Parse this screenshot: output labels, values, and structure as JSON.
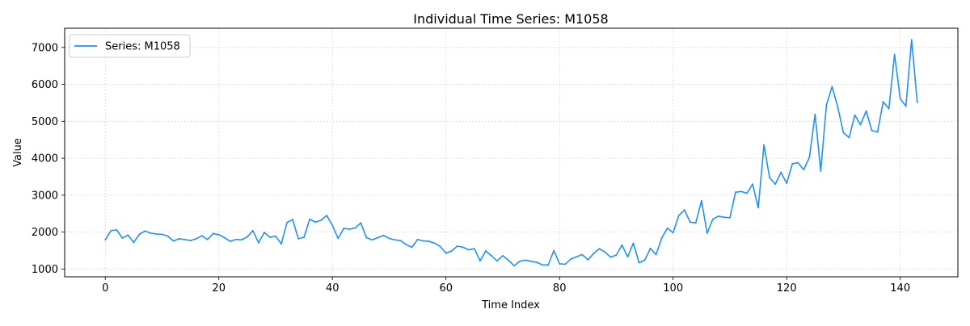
{
  "chart_data": {
    "type": "line",
    "title": "Individual Time Series: M1058",
    "xlabel": "Time Index",
    "ylabel": "Value",
    "xlim": [
      -7.15,
      150.15
    ],
    "ylim": [
      790,
      7520
    ],
    "xticks": [
      0,
      20,
      40,
      60,
      80,
      100,
      120,
      140
    ],
    "yticks": [
      1000,
      2000,
      3000,
      4000,
      5000,
      6000,
      7000
    ],
    "grid": true,
    "legend_position": "upper-left",
    "series": [
      {
        "name": "Series: M1058",
        "color": "#1e90ff",
        "x": [
          0,
          1,
          2,
          3,
          4,
          5,
          6,
          7,
          8,
          9,
          10,
          11,
          12,
          13,
          14,
          15,
          16,
          17,
          18,
          19,
          20,
          21,
          22,
          23,
          24,
          25,
          26,
          27,
          28,
          29,
          30,
          31,
          32,
          33,
          34,
          35,
          36,
          37,
          38,
          39,
          40,
          41,
          42,
          43,
          44,
          45,
          46,
          47,
          48,
          49,
          50,
          51,
          52,
          53,
          54,
          55,
          56,
          57,
          58,
          59,
          60,
          61,
          62,
          63,
          64,
          65,
          66,
          67,
          68,
          69,
          70,
          71,
          72,
          73,
          74,
          75,
          76,
          77,
          78,
          79,
          80,
          81,
          82,
          83,
          84,
          85,
          86,
          87,
          88,
          89,
          90,
          91,
          92,
          93,
          94,
          95,
          96,
          97,
          98,
          99,
          100,
          101,
          102,
          103,
          104,
          105,
          106,
          107,
          108,
          109,
          110,
          111,
          112,
          113,
          114,
          115,
          116,
          117,
          118,
          119,
          120,
          121,
          122,
          123,
          124,
          125,
          126,
          127,
          128,
          129,
          130,
          131,
          132,
          133,
          134,
          135,
          136,
          137,
          138,
          139,
          140,
          141,
          142,
          143
        ],
        "values": [
          1790,
          2040,
          2060,
          1840,
          1920,
          1720,
          1940,
          2030,
          1970,
          1950,
          1940,
          1890,
          1760,
          1820,
          1800,
          1770,
          1820,
          1900,
          1800,
          1960,
          1930,
          1850,
          1750,
          1800,
          1790,
          1870,
          2040,
          1710,
          1990,
          1860,
          1890,
          1680,
          2260,
          2340,
          1820,
          1860,
          2350,
          2270,
          2320,
          2450,
          2180,
          1830,
          2100,
          2080,
          2110,
          2250,
          1850,
          1790,
          1850,
          1910,
          1830,
          1790,
          1770,
          1660,
          1590,
          1800,
          1760,
          1750,
          1700,
          1610,
          1430,
          1490,
          1620,
          1590,
          1520,
          1550,
          1220,
          1490,
          1360,
          1220,
          1360,
          1240,
          1090,
          1210,
          1240,
          1210,
          1180,
          1110,
          1110,
          1500,
          1140,
          1130,
          1270,
          1330,
          1390,
          1250,
          1420,
          1550,
          1460,
          1320,
          1380,
          1650,
          1330,
          1700,
          1170,
          1240,
          1560,
          1390,
          1840,
          2110,
          1980,
          2450,
          2600,
          2270,
          2250,
          2850,
          1970,
          2350,
          2430,
          2400,
          2390,
          3080,
          3100,
          3050,
          3300,
          2660,
          4360,
          3470,
          3300,
          3620,
          3320,
          3850,
          3880,
          3690,
          4020,
          5190,
          3650,
          5440,
          5940,
          5380,
          4690,
          4560,
          5170,
          4910,
          5280,
          4750,
          4710,
          5530,
          5340,
          6810,
          5610,
          5410,
          7210,
          5510
        ]
      }
    ]
  }
}
